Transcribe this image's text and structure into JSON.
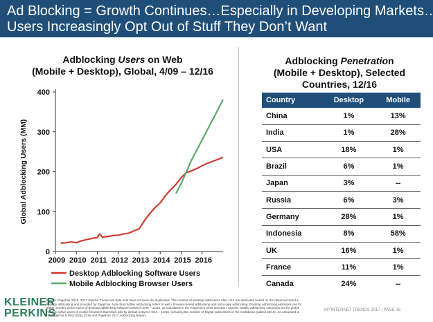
{
  "header": {
    "line1": "Ad Blocking = Growth Continues…Especially in Developing Markets…",
    "line2": "Users Increasingly Opt Out of Stuff They Don’t Want"
  },
  "chart_data": {
    "type": "line",
    "title_prefix": "Adblocking ",
    "title_emphasis": "Users",
    "title_suffix": " on Web",
    "subtitle": "(Mobile + Desktop), Global, 4/09 – 12/16",
    "ylabel": "Global Adblocking Users (MM)",
    "xlabel": "",
    "ylim": [
      0,
      400
    ],
    "yticks": [
      0,
      100,
      200,
      300,
      400
    ],
    "xlim": [
      2009,
      2017
    ],
    "xticks": [
      2009,
      2010,
      2011,
      2012,
      2013,
      2014,
      2015,
      2016
    ],
    "legend_position": "bottom",
    "grid": false,
    "series": [
      {
        "name": "Desktop Adblocking Software Users",
        "color": "#d23a2e",
        "points": [
          [
            2009.25,
            21
          ],
          [
            2009.5,
            22
          ],
          [
            2009.75,
            24
          ],
          [
            2010.0,
            22
          ],
          [
            2010.25,
            27
          ],
          [
            2010.5,
            30
          ],
          [
            2010.75,
            33
          ],
          [
            2011.0,
            35
          ],
          [
            2011.1,
            44
          ],
          [
            2011.25,
            36
          ],
          [
            2011.5,
            38
          ],
          [
            2011.75,
            40
          ],
          [
            2012.0,
            41
          ],
          [
            2012.25,
            44
          ],
          [
            2012.5,
            46
          ],
          [
            2012.75,
            52
          ],
          [
            2013.0,
            57
          ],
          [
            2013.25,
            78
          ],
          [
            2013.5,
            95
          ],
          [
            2013.75,
            110
          ],
          [
            2014.0,
            122
          ],
          [
            2014.25,
            140
          ],
          [
            2014.5,
            155
          ],
          [
            2014.75,
            168
          ],
          [
            2015.0,
            185
          ],
          [
            2015.25,
            198
          ],
          [
            2015.5,
            202
          ],
          [
            2015.75,
            208
          ],
          [
            2016.0,
            215
          ],
          [
            2016.25,
            221
          ],
          [
            2016.5,
            226
          ],
          [
            2016.75,
            231
          ],
          [
            2017.0,
            236
          ]
        ]
      },
      {
        "name": "Mobile Adblocking Browser Users",
        "color": "#5aa96b",
        "points": [
          [
            2014.75,
            145
          ],
          [
            2015.0,
            170
          ],
          [
            2015.25,
            200
          ],
          [
            2015.5,
            230
          ],
          [
            2015.75,
            255
          ],
          [
            2016.0,
            280
          ],
          [
            2016.25,
            305
          ],
          [
            2016.5,
            330
          ],
          [
            2016.75,
            355
          ],
          [
            2017.0,
            381
          ]
        ]
      }
    ]
  },
  "table": {
    "title_prefix": "Adblocking ",
    "title_emphasis": "Penetratio",
    "title_suffix": "n",
    "subtitle_line1": "(Mobile + Desktop), Selected",
    "subtitle_line2": "Countries, 12/16",
    "headers": [
      "Country",
      "Desktop",
      "Mobile"
    ],
    "rows": [
      [
        "China",
        "1%",
        "13%"
      ],
      [
        "India",
        "1%",
        "28%"
      ],
      [
        "USA",
        "18%",
        "1%"
      ],
      [
        "Brazil",
        "6%",
        "1%"
      ],
      [
        "Japan",
        "3%",
        "--"
      ],
      [
        "Russia",
        "6%",
        "3%"
      ],
      [
        "Germany",
        "28%",
        "1%"
      ],
      [
        "Indonesia",
        "8%",
        "58%"
      ],
      [
        "UK",
        "16%",
        "1%"
      ],
      [
        "France",
        "11%",
        "1%"
      ],
      [
        "Canada",
        "24%",
        "--"
      ]
    ]
  },
  "footer": {
    "logo_line1": "KLEINER",
    "logo_line2": "PERKINS",
    "source": "Source: PageFair 2015, 2017 reports. These two data sets have not been de-duplicated. The number of desktop adblockers after 1/16 are estimates based on the observed trend in desktop adblocking and provided by PageFair. Note that mobile adblocking refers to web / browser-based adblocking and not in-app adblocking. Desktop adblocking estimates are for global monthly active users of desktop adblocking software between 4/09 – 12/16, as calculated in the PageFair's 2015 and 2017 reports. Mobile adblocking estimates are for global monthly active users of mobile browsers that block ads by default between 9/14 – 12/16, including the number of Digital subscribers in the Caribbean (added 10/15), as calculated in the PageFair & Priori Data 2016 and PageFair 2017 Adblocking Report.",
    "right": "KP INTERNET TRENDS 2017  |  PAGE 16"
  },
  "colors": {
    "header_bg": "#1f4e79",
    "logo": "#2e7d5b"
  }
}
